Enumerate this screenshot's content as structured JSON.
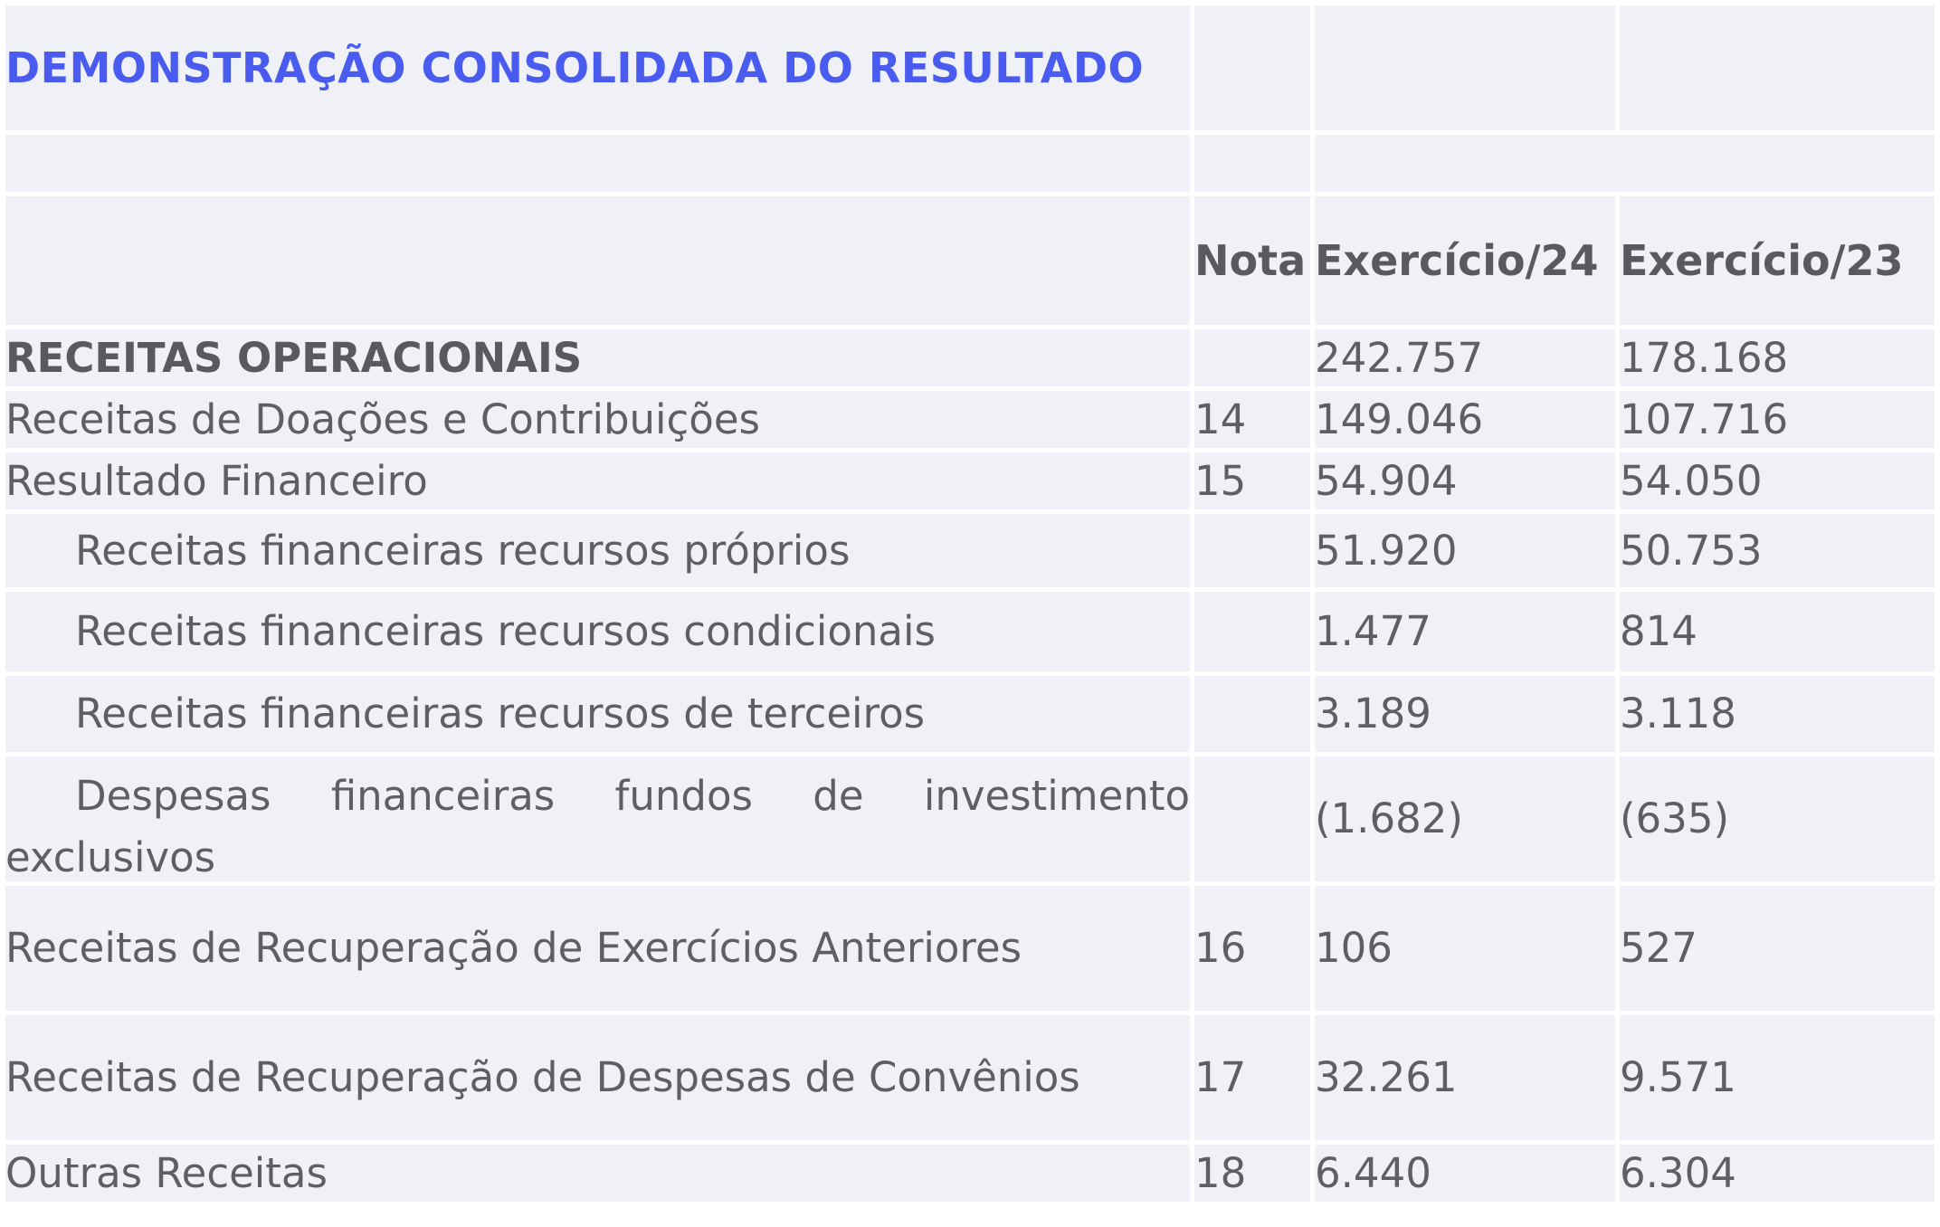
{
  "title": "DEMONSTRAÇÃO CONSOLIDADA DO RESULTADO",
  "headers": {
    "nota": "Nota",
    "ex24": "Exercício/24",
    "ex23": "Exercício/23"
  },
  "rows": [
    {
      "label": "RECEITAS OPERACIONAIS",
      "nota": "",
      "ex24": "242.757",
      "ex23": "178.168"
    },
    {
      "label": "Receitas de Doações e Contribuições",
      "nota": "14",
      "ex24": "149.046",
      "ex23": "107.716"
    },
    {
      "label": "Resultado Financeiro",
      "nota": "15",
      "ex24": "54.904",
      "ex23": "54.050"
    },
    {
      "label": "Receitas financeiras recursos próprios",
      "nota": "",
      "ex24": "51.920",
      "ex23": "50.753"
    },
    {
      "label": "Receitas financeiras recursos condicionais",
      "nota": "",
      "ex24": "1.477",
      "ex23": "814"
    },
    {
      "label": "Receitas financeiras recursos de terceiros",
      "nota": "",
      "ex24": "3.189",
      "ex23": "3.118"
    },
    {
      "label_line1": "Despesas financeiras fundos de investimento",
      "label_line2": "exclusivos",
      "nota": "",
      "ex24": "(1.682)",
      "ex23": "(635)"
    },
    {
      "label": "Receitas de Recuperação de Exercícios Anteriores",
      "nota": "16",
      "ex24": "106",
      "ex23": "527"
    },
    {
      "label": "Receitas de Recuperação de Despesas de Convênios",
      "nota": "17",
      "ex24": "32.261",
      "ex23": "9.571"
    },
    {
      "label": "Outras Receitas",
      "nota": "18",
      "ex24": "6.440",
      "ex23": "6.304"
    }
  ]
}
